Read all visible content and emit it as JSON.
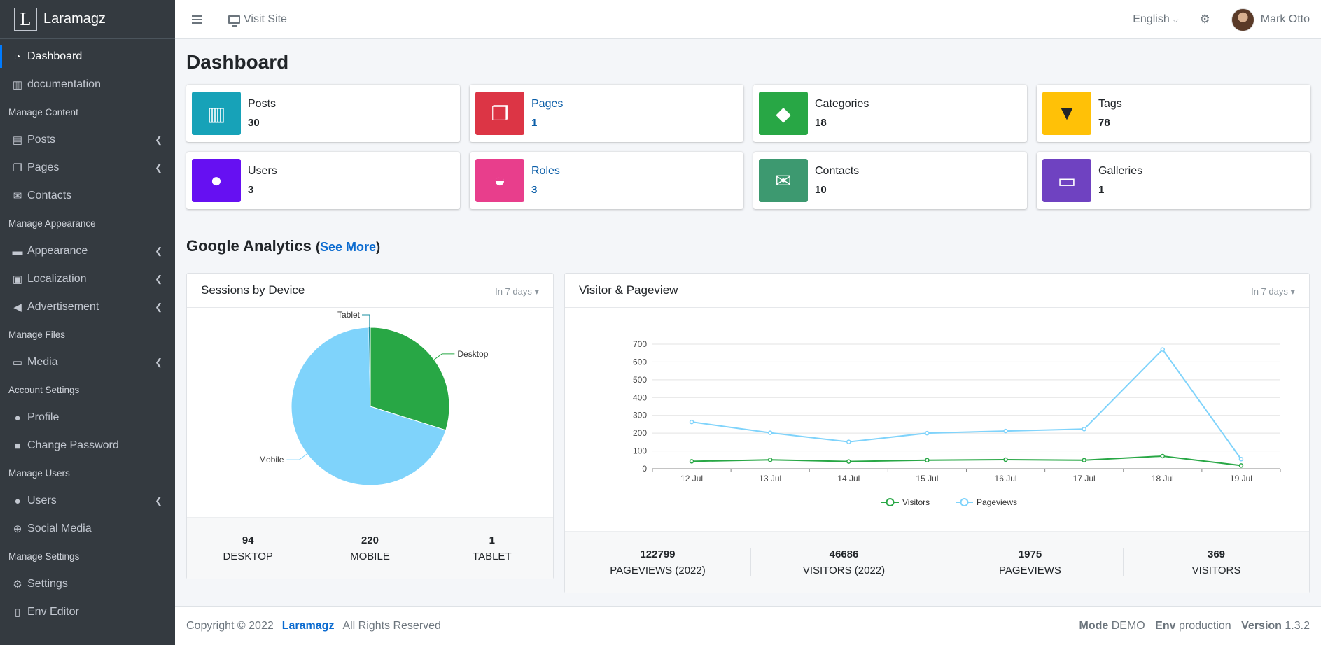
{
  "brand": {
    "logo_letter": "L",
    "name": "Laramagz"
  },
  "sidebar": {
    "items": [
      {
        "type": "item",
        "label": "Dashboard",
        "icon": "tachometer-icon",
        "glyph": "◔",
        "active": true
      },
      {
        "type": "item",
        "label": "documentation",
        "icon": "book-icon",
        "glyph": "▥"
      },
      {
        "type": "header",
        "label": "Manage Content"
      },
      {
        "type": "item",
        "label": "Posts",
        "icon": "newspaper-icon",
        "glyph": "▤",
        "caret": true
      },
      {
        "type": "item",
        "label": "Pages",
        "icon": "copy-icon",
        "glyph": "❐",
        "caret": true
      },
      {
        "type": "item",
        "label": "Contacts",
        "icon": "envelope-icon",
        "glyph": "✉"
      },
      {
        "type": "header",
        "label": "Manage Appearance"
      },
      {
        "type": "item",
        "label": "Appearance",
        "icon": "paint-roller-icon",
        "glyph": "▬",
        "caret": true
      },
      {
        "type": "item",
        "label": "Localization",
        "icon": "language-icon",
        "glyph": "▣",
        "caret": true
      },
      {
        "type": "item",
        "label": "Advertisement",
        "icon": "bullhorn-icon",
        "glyph": "◀",
        "caret": true
      },
      {
        "type": "header",
        "label": "Manage Files"
      },
      {
        "type": "item",
        "label": "Media",
        "icon": "hdd-icon",
        "glyph": "▭",
        "caret": true
      },
      {
        "type": "header",
        "label": "Account Settings"
      },
      {
        "type": "item",
        "label": "Profile",
        "icon": "user-icon",
        "glyph": "●"
      },
      {
        "type": "item",
        "label": "Change Password",
        "icon": "lock-icon",
        "glyph": "■"
      },
      {
        "type": "header",
        "label": "Manage Users"
      },
      {
        "type": "item",
        "label": "Users",
        "icon": "users-icon",
        "glyph": "●",
        "caret": true
      },
      {
        "type": "item",
        "label": "Social Media",
        "icon": "globe-icon",
        "glyph": "⊕"
      },
      {
        "type": "header",
        "label": "Manage Settings"
      },
      {
        "type": "item",
        "label": "Settings",
        "icon": "cogs-icon",
        "glyph": "⚙"
      },
      {
        "type": "item",
        "label": "Env Editor",
        "icon": "file-icon",
        "glyph": "▯"
      }
    ]
  },
  "topbar": {
    "visit_site": "Visit Site",
    "language": "English",
    "user_name": "Mark Otto"
  },
  "page": {
    "title": "Dashboard"
  },
  "info_boxes": [
    {
      "label": "Posts",
      "value": "30",
      "color": "#17a2b8",
      "icon": "book-icon",
      "glyph": "▥"
    },
    {
      "label": "Pages",
      "value": "1",
      "color": "#dc3545",
      "icon": "copy-icon",
      "glyph": "❐",
      "link": true
    },
    {
      "label": "Categories",
      "value": "18",
      "color": "#28a745",
      "icon": "tags-icon",
      "glyph": "◆"
    },
    {
      "label": "Tags",
      "value": "78",
      "color": "#ffc107",
      "icon": "thumbtack-icon",
      "glyph": "▼",
      "dark_icon": true
    },
    {
      "label": "Users",
      "value": "3",
      "color": "#6610f2",
      "icon": "users-icon",
      "glyph": "●"
    },
    {
      "label": "Roles",
      "value": "3",
      "color": "#e83e8c",
      "icon": "user-shield-icon",
      "glyph": "◒",
      "link": true
    },
    {
      "label": "Contacts",
      "value": "10",
      "color": "#3d9970",
      "icon": "envelope-icon",
      "glyph": "✉"
    },
    {
      "label": "Galleries",
      "value": "1",
      "color": "#6f42c1",
      "icon": "hdd-icon",
      "glyph": "▭"
    }
  ],
  "analytics": {
    "title": "Google Analytics",
    "see_more": "See More",
    "sessions_card": {
      "title": "Sessions by Device",
      "range": "In 7 days",
      "stats": [
        {
          "value": "94",
          "label": "Desktop"
        },
        {
          "value": "220",
          "label": "Mobile"
        },
        {
          "value": "1",
          "label": "Tablet"
        }
      ]
    },
    "visitor_card": {
      "title": "Visitor & Pageview",
      "range": "In 7 days",
      "stats": [
        {
          "value": "122799",
          "label": "Pageviews (2022)"
        },
        {
          "value": "46686",
          "label": "Visitors (2022)"
        },
        {
          "value": "1975",
          "label": "Pageviews"
        },
        {
          "value": "369",
          "label": "Visitors"
        }
      ]
    }
  },
  "chart_data": [
    {
      "type": "pie",
      "title": "Sessions by Device",
      "categories": [
        "Desktop",
        "Mobile",
        "Tablet"
      ],
      "values": [
        94,
        220,
        1
      ],
      "colors": [
        "#28a745",
        "#7fd3fb",
        "#1b8fa0"
      ]
    },
    {
      "type": "line",
      "title": "Visitor & Pageview",
      "categories": [
        "12 Jul",
        "13 Jul",
        "14 Jul",
        "15 Jul",
        "16 Jul",
        "17 Jul",
        "18 Jul",
        "19 Jul"
      ],
      "series": [
        {
          "name": "Visitors",
          "values": [
            42,
            50,
            41,
            48,
            51,
            48,
            71,
            18
          ],
          "color": "#28a745"
        },
        {
          "name": "Pageviews",
          "values": [
            263,
            202,
            151,
            200,
            212,
            223,
            670,
            54
          ],
          "color": "#7fd3fb"
        }
      ],
      "yticks": [
        "0",
        "100",
        "200",
        "300",
        "400",
        "500",
        "600",
        "700"
      ],
      "ylim": [
        0,
        700
      ]
    }
  ],
  "footer": {
    "copyright": "Copyright © 2022",
    "brand": "Laramagz",
    "rights": "All Rights Reserved",
    "mode_label": "Mode",
    "mode_value": "DEMO",
    "env_label": "Env",
    "env_value": "production",
    "version_label": "Version",
    "version_value": "1.3.2"
  }
}
